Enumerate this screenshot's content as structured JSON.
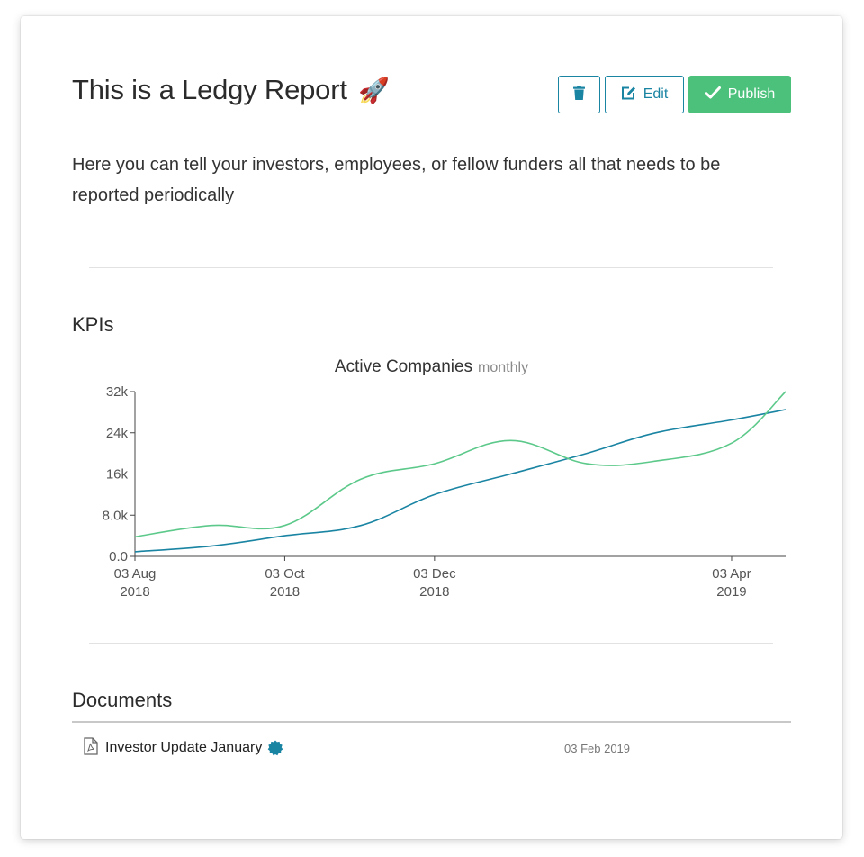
{
  "report": {
    "title": "This is a Ledgy Report",
    "title_emoji": "🚀",
    "description": "Here you can tell your investors, employees, or fellow funders all that needs to be reported periodically"
  },
  "actions": {
    "delete_icon": "trash-icon",
    "edit_label": "Edit",
    "edit_icon": "edit-icon",
    "publish_label": "Publish",
    "publish_icon": "check-icon"
  },
  "kpis": {
    "heading": "KPIs",
    "chart_title": "Active Companies",
    "chart_subtitle": "monthly"
  },
  "chart_data": {
    "type": "line",
    "title": "Active Companies",
    "subtitle": "monthly",
    "x_ticks": [
      "03 Aug 2018",
      "03 Oct 2018",
      "03 Dec 2018",
      "03 Apr 2019"
    ],
    "y_ticks": [
      "0.0",
      "8.0k",
      "16k",
      "24k",
      "32k"
    ],
    "ylim": [
      0,
      32000
    ],
    "xlim": [
      "2018-08-03",
      "2019-04-25"
    ],
    "grid": false,
    "series": [
      {
        "color": "#1a84a3",
        "points": [
          {
            "x": "2018-08-03",
            "y": 900
          },
          {
            "x": "2018-09-03",
            "y": 2000
          },
          {
            "x": "2018-10-03",
            "y": 4000
          },
          {
            "x": "2018-11-03",
            "y": 6000
          },
          {
            "x": "2018-12-03",
            "y": 12000
          },
          {
            "x": "2019-01-03",
            "y": 16000
          },
          {
            "x": "2019-02-03",
            "y": 20000
          },
          {
            "x": "2019-03-03",
            "y": 24000
          },
          {
            "x": "2019-04-03",
            "y": 26500
          },
          {
            "x": "2019-04-25",
            "y": 28500
          }
        ]
      },
      {
        "color": "#5cc98a",
        "points": [
          {
            "x": "2018-08-03",
            "y": 3800
          },
          {
            "x": "2018-09-03",
            "y": 6000
          },
          {
            "x": "2018-10-03",
            "y": 6000
          },
          {
            "x": "2018-11-03",
            "y": 15000
          },
          {
            "x": "2018-12-03",
            "y": 18000
          },
          {
            "x": "2019-01-03",
            "y": 22500
          },
          {
            "x": "2019-02-03",
            "y": 18000
          },
          {
            "x": "2019-03-03",
            "y": 18500
          },
          {
            "x": "2019-04-03",
            "y": 22000
          },
          {
            "x": "2019-04-25",
            "y": 32000
          }
        ]
      }
    ]
  },
  "documents": {
    "heading": "Documents",
    "items": [
      {
        "name": "Investor Update January",
        "date": "03 Feb 2019",
        "icon": "pdf-file-icon",
        "badge_icon": "verified-badge-icon",
        "badge_color": "#1a84a3"
      }
    ]
  },
  "colors": {
    "accent": "#1a84a3",
    "publish": "#4cc17b",
    "series_blue": "#1a84a3",
    "series_green": "#5cc98a"
  }
}
